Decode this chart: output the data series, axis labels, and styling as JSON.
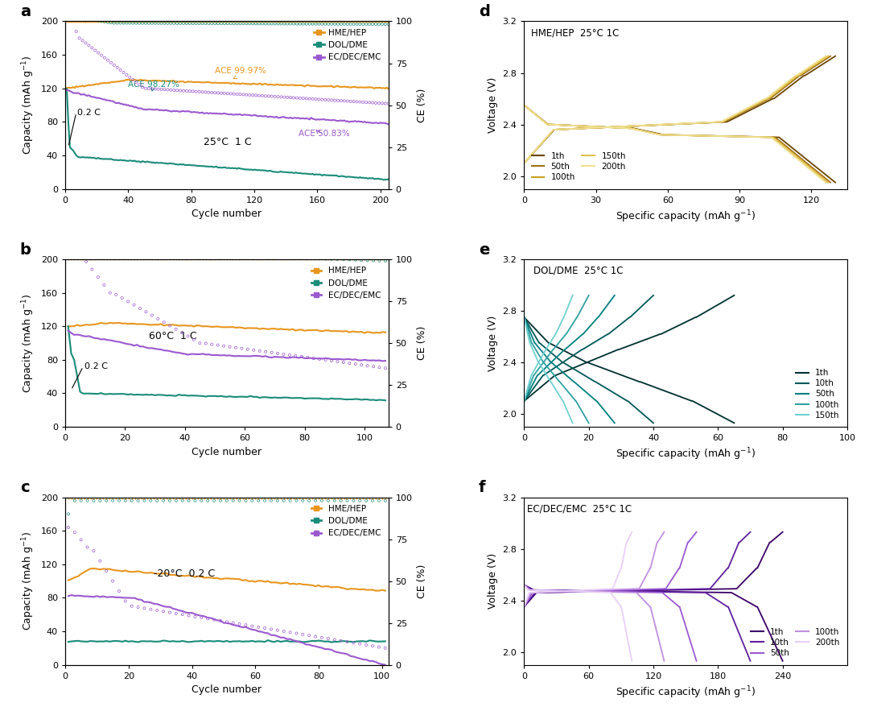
{
  "colors": {
    "hme_hep": "#E8961E",
    "dol_dme": "#1A8C7A",
    "ec_dec_emc": "#9B59D0"
  },
  "panel_d": {
    "title": "HME/HEP  25°C 1C",
    "xlim": [
      0,
      135
    ],
    "xticks": [
      0,
      30,
      60,
      90,
      120
    ],
    "ylim": [
      1.9,
      3.2
    ],
    "yticks": [
      2.0,
      2.4,
      2.8,
      3.2
    ],
    "legend_labels": [
      "1th",
      "50th",
      "100th",
      "150th",
      "200th"
    ],
    "legend_colors": [
      "#6B4500",
      "#A07010",
      "#C8A020",
      "#E0C050",
      "#F0E090"
    ]
  },
  "panel_e": {
    "title": "DOL/DME  25°C 1C",
    "xlim": [
      0,
      100
    ],
    "xticks": [
      0,
      20,
      40,
      60,
      80,
      100
    ],
    "ylim": [
      1.9,
      3.2
    ],
    "yticks": [
      2.0,
      2.4,
      2.8,
      3.2
    ],
    "legend_labels": [
      "1th",
      "10th",
      "50th",
      "100th",
      "150th"
    ],
    "legend_colors": [
      "#003030",
      "#005858",
      "#008080",
      "#30A0A0",
      "#70D0D0"
    ]
  },
  "panel_f": {
    "title": "EC/DEC/EMC  25°C 1C",
    "xlim": [
      0,
      300
    ],
    "xticks": [
      0,
      60,
      120,
      180,
      240
    ],
    "ylim": [
      1.9,
      3.2
    ],
    "yticks": [
      2.0,
      2.4,
      2.8,
      3.2
    ],
    "legend_labels": [
      "1th",
      "10th",
      "50th",
      "100th",
      "200th"
    ],
    "legend_colors": [
      "#3B0068",
      "#6020A0",
      "#9B59D0",
      "#C090E0",
      "#E8D0F8"
    ]
  }
}
